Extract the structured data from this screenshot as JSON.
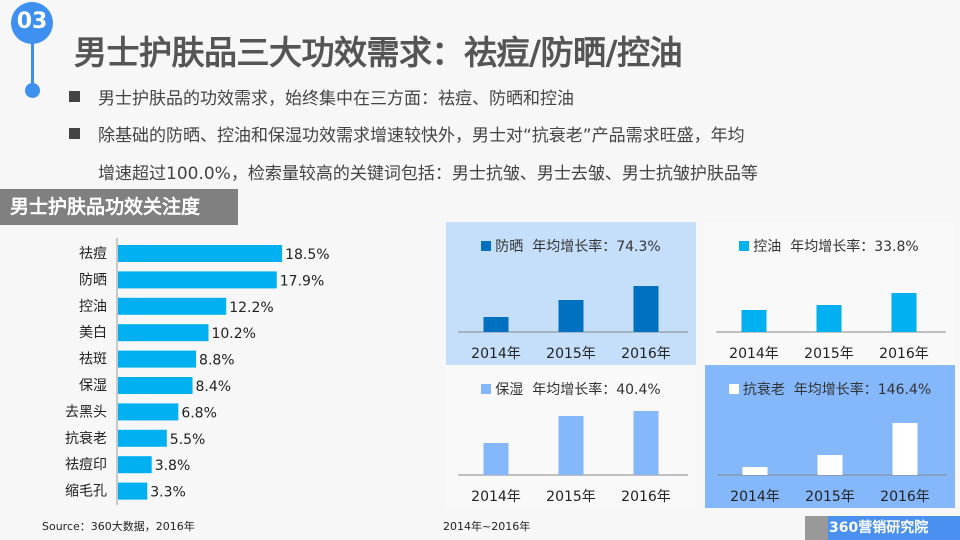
{
  "header": {
    "badge": "03",
    "title": "男士护肤品三大功效需求：祛痘/防晒/控油"
  },
  "bullets": [
    "男士护肤品的功效需求，始终集中在三方面：祛痘、防晒和控油",
    "除基础的防晒、控油和保湿功效需求增速较快外，男士对“抗衰老”产品需求旺盛，年均",
    "增速超过100.0%，检索量较高的关键词包括：男士抗皱、男士去皱、男士抗皱护肤品等"
  ],
  "section_title": "男士护肤品功效关注度",
  "source": "Source：360大数据，2016年",
  "note": "2014年~2016年",
  "logo": "360营销研究院",
  "chart_data": [
    {
      "type": "bar",
      "orientation": "horizontal",
      "title": "男士护肤品功效关注度",
      "categories": [
        "祛痘",
        "防晒",
        "控油",
        "美白",
        "祛斑",
        "保湿",
        "去黑头",
        "抗衰老",
        "祛痘印",
        "缩毛孔"
      ],
      "values": [
        18.5,
        17.9,
        12.2,
        10.2,
        8.8,
        8.4,
        6.8,
        5.5,
        3.8,
        3.3
      ],
      "labels": [
        "18.5%",
        "17.9%",
        "12.2%",
        "10.2%",
        "8.8%",
        "8.4%",
        "6.8%",
        "5.5%",
        "3.8%",
        "3.3%"
      ],
      "color": "#00b0f0"
    },
    {
      "type": "bar",
      "name": "防晒",
      "rate_label": "年均增长率：74.3%",
      "categories": [
        "2014年",
        "2015年",
        "2016年"
      ],
      "values": [
        15,
        32,
        46
      ],
      "color": "#0070c0",
      "bg": "#c5dffb"
    },
    {
      "type": "bar",
      "name": "控油",
      "rate_label": "年均增长率：33.8%",
      "categories": [
        "2014年",
        "2015年",
        "2016年"
      ],
      "values": [
        22,
        27,
        39
      ],
      "color": "#00b0f0",
      "bg": "#f9f9f9"
    },
    {
      "type": "bar",
      "name": "保湿",
      "rate_label": "年均增长率：40.4%",
      "categories": [
        "2014年",
        "2015年",
        "2016年"
      ],
      "values": [
        32,
        59,
        64
      ],
      "color": "#85b8fb",
      "bg": "#f9f9f9"
    },
    {
      "type": "bar",
      "name": "抗衰老",
      "rate_label": "年均增长率：146.4%",
      "categories": [
        "2014年",
        "2015年",
        "2016年"
      ],
      "values": [
        8,
        20,
        52
      ],
      "color": "#ffffff",
      "bg": "#85b8fb"
    }
  ]
}
